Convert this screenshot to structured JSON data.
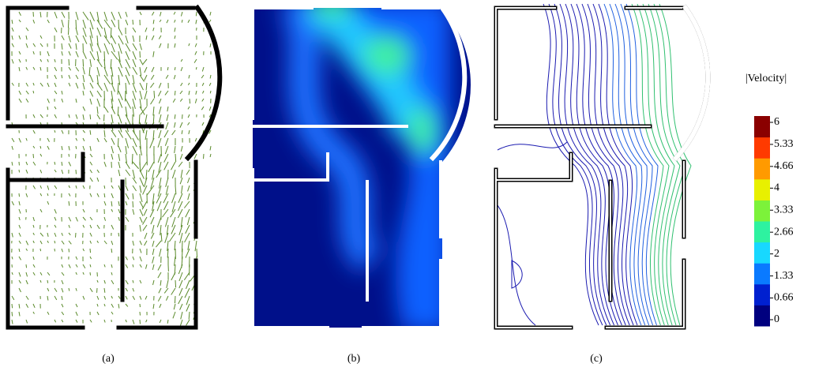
{
  "panels": [
    {
      "caption": "(a)"
    },
    {
      "caption": "(b)"
    },
    {
      "caption": "(c)"
    }
  ],
  "colorbar": {
    "title": "|Velocity|",
    "ticks": [
      6,
      5.33,
      4.66,
      4,
      3.33,
      2.66,
      2,
      1.33,
      0.66,
      0
    ],
    "colors": [
      "#00007f",
      "#0020d0",
      "#0a7aff",
      "#18d8ff",
      "#2ef2a0",
      "#7cf23a",
      "#e8f000",
      "#ff9a00",
      "#ff3a00",
      "#8a0000"
    ]
  }
}
